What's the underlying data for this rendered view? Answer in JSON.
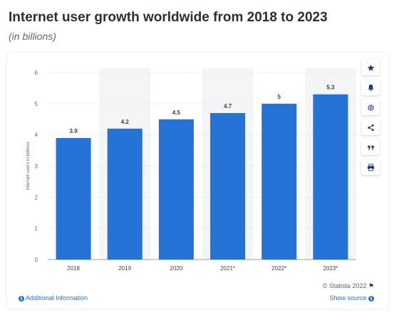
{
  "header": {
    "title": "Internet user growth worldwide from 2018 to 2023",
    "subtitle": "(in billions)"
  },
  "chart_data": {
    "type": "bar",
    "categories": [
      "2018",
      "2019",
      "2020",
      "2021*",
      "2022*",
      "2023*"
    ],
    "values": [
      3.9,
      4.2,
      4.5,
      4.7,
      5,
      5.3
    ],
    "value_labels": [
      "3.9",
      "4.2",
      "4.5",
      "4.7",
      "5",
      "5.3"
    ],
    "ylabel": "Internet users in billions",
    "ylim": [
      0,
      6
    ],
    "yticks": [
      0,
      1,
      2,
      3,
      4,
      5,
      6
    ],
    "grid": true,
    "bar_color": "#2673d8",
    "alternating_band_color": "#f4f5f7"
  },
  "toolbar": {
    "items": [
      {
        "name": "star-icon"
      },
      {
        "name": "bell-icon"
      },
      {
        "name": "gear-icon"
      },
      {
        "name": "share-icon"
      },
      {
        "name": "quote-icon"
      },
      {
        "name": "print-icon"
      }
    ]
  },
  "footer": {
    "credit": "© Statista 2022",
    "additional_info": "Additional Information",
    "show_source": "Show source"
  },
  "colors": {
    "accent": "#2673d8",
    "title": "#2b2f36",
    "icon": "#1f3b67"
  }
}
